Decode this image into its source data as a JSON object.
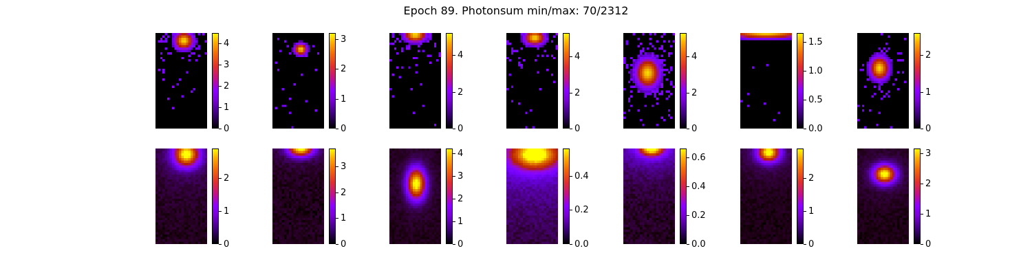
{
  "title": "Epoch 89. Photonsum min/max: 70/2312",
  "chart_data": {
    "type": "heatmap",
    "title": "Epoch 89. Photonsum min/max: 70/2312",
    "layout": {
      "rows": 2,
      "cols": 7
    },
    "colormap": "gnuplot",
    "panels": [
      {
        "row": 0,
        "col": 0,
        "vmin": 0,
        "vmax": 4.5,
        "ticks": [
          0,
          1,
          2,
          3,
          4
        ],
        "tick_labels": [
          "0",
          "1",
          "2",
          "3",
          "4"
        ],
        "blob": {
          "x": 0.55,
          "y": 0.08,
          "sx": 0.12,
          "sy": 0.06
        },
        "noise": 0.45,
        "spread": 0.55
      },
      {
        "row": 0,
        "col": 1,
        "vmin": 0,
        "vmax": 3.2,
        "ticks": [
          0,
          1,
          2,
          3
        ],
        "tick_labels": [
          "0",
          "1",
          "2",
          "3"
        ],
        "blob": {
          "x": 0.55,
          "y": 0.17,
          "sx": 0.08,
          "sy": 0.04
        },
        "noise": 0.3,
        "spread": 0.25
      },
      {
        "row": 0,
        "col": 2,
        "vmin": 0,
        "vmax": 5.2,
        "ticks": [
          0,
          2,
          4
        ],
        "tick_labels": [
          "0",
          "2",
          "4"
        ],
        "blob": {
          "x": 0.5,
          "y": 0.02,
          "sx": 0.14,
          "sy": 0.05
        },
        "noise": 0.45,
        "spread": 0.6
      },
      {
        "row": 0,
        "col": 3,
        "vmin": 0,
        "vmax": 5.3,
        "ticks": [
          0,
          2,
          4
        ],
        "tick_labels": [
          "0",
          "2",
          "4"
        ],
        "blob": {
          "x": 0.55,
          "y": 0.05,
          "sx": 0.13,
          "sy": 0.05
        },
        "noise": 0.45,
        "spread": 0.6
      },
      {
        "row": 0,
        "col": 4,
        "vmin": 0,
        "vmax": 5.3,
        "ticks": [
          0,
          2,
          4
        ],
        "tick_labels": [
          "0",
          "2",
          "4"
        ],
        "blob": {
          "x": 0.47,
          "y": 0.42,
          "sx": 0.15,
          "sy": 0.1
        },
        "noise": 0.45,
        "spread": 0.6
      },
      {
        "row": 0,
        "col": 5,
        "vmin": 0,
        "vmax": 1.65,
        "ticks": [
          0,
          0.5,
          1,
          1.5
        ],
        "tick_labels": [
          "0.0",
          "0.5",
          "1.0",
          "1.5"
        ],
        "blob": {
          "x": 0.5,
          "y": 0.0,
          "sx": 0.5,
          "sy": 0.04
        },
        "noise": 0.15,
        "spread": 0.2
      },
      {
        "row": 0,
        "col": 6,
        "vmin": 0,
        "vmax": 2.6,
        "ticks": [
          0,
          1,
          2
        ],
        "tick_labels": [
          "0",
          "1",
          "2"
        ],
        "blob": {
          "x": 0.43,
          "y": 0.37,
          "sx": 0.12,
          "sy": 0.08
        },
        "noise": 0.35,
        "spread": 0.45
      },
      {
        "row": 1,
        "col": 0,
        "vmin": 0,
        "vmax": 2.9,
        "ticks": [
          0,
          1,
          2
        ],
        "tick_labels": [
          "0",
          "1",
          "2"
        ],
        "blob": {
          "x": 0.6,
          "y": 0.06,
          "sx": 0.15,
          "sy": 0.08
        },
        "noise": 0.08,
        "spread": 0.6
      },
      {
        "row": 1,
        "col": 1,
        "vmin": 0,
        "vmax": 3.7,
        "ticks": [
          0,
          1,
          2,
          3
        ],
        "tick_labels": [
          "0",
          "1",
          "2",
          "3"
        ],
        "blob": {
          "x": 0.55,
          "y": 0.0,
          "sx": 0.15,
          "sy": 0.05
        },
        "noise": 0.08,
        "spread": 0.5
      },
      {
        "row": 1,
        "col": 2,
        "vmin": 0,
        "vmax": 4.2,
        "ticks": [
          0,
          1,
          2,
          3,
          4
        ],
        "tick_labels": [
          "0",
          "1",
          "2",
          "3",
          "4"
        ],
        "blob": {
          "x": 0.52,
          "y": 0.37,
          "sx": 0.11,
          "sy": 0.1
        },
        "noise": 0.06,
        "spread": 0.45
      },
      {
        "row": 1,
        "col": 3,
        "vmin": 0,
        "vmax": 0.56,
        "ticks": [
          0,
          0.2,
          0.4
        ],
        "tick_labels": [
          "0.0",
          "0.2",
          "0.4"
        ],
        "blob": {
          "x": 0.55,
          "y": 0.06,
          "sx": 0.3,
          "sy": 0.1
        },
        "noise": 0.12,
        "spread": 1.0
      },
      {
        "row": 1,
        "col": 4,
        "vmin": 0,
        "vmax": 0.66,
        "ticks": [
          0,
          0.2,
          0.4,
          0.6
        ],
        "tick_labels": [
          "0.0",
          "0.2",
          "0.4",
          "0.6"
        ],
        "blob": {
          "x": 0.55,
          "y": 0.0,
          "sx": 0.15,
          "sy": 0.05
        },
        "noise": 0.1,
        "spread": 1.0
      },
      {
        "row": 1,
        "col": 5,
        "vmin": 0,
        "vmax": 2.9,
        "ticks": [
          0,
          1,
          2
        ],
        "tick_labels": [
          "0",
          "1",
          "2"
        ],
        "blob": {
          "x": 0.55,
          "y": 0.04,
          "sx": 0.13,
          "sy": 0.06
        },
        "noise": 0.06,
        "spread": 0.6
      },
      {
        "row": 1,
        "col": 6,
        "vmin": 0,
        "vmax": 3.15,
        "ticks": [
          0,
          1,
          2,
          3
        ],
        "tick_labels": [
          "0",
          "1",
          "2",
          "3"
        ],
        "blob": {
          "x": 0.53,
          "y": 0.27,
          "sx": 0.13,
          "sy": 0.06
        },
        "noise": 0.06,
        "spread": 0.5
      }
    ]
  }
}
